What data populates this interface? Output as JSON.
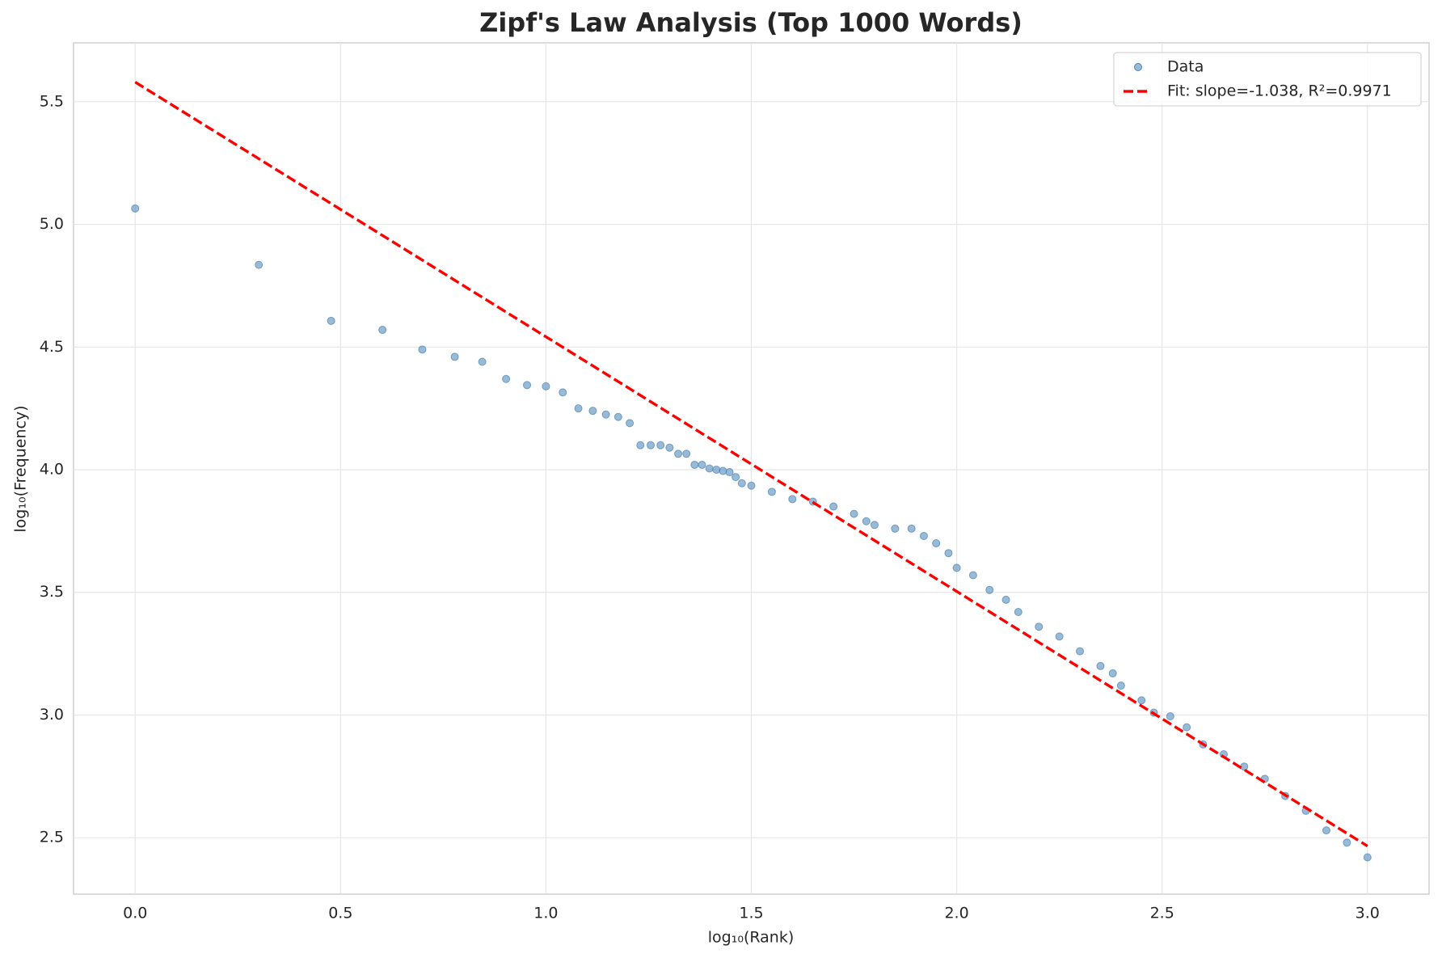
{
  "chart_data": {
    "type": "scatter",
    "title": "Zipf's Law Analysis (Top 1000 Words)",
    "xlabel": "log₁₀(Rank)",
    "ylabel": "log₁₀(Frequency)",
    "xlim": [
      -0.15,
      3.15
    ],
    "ylim": [
      2.27,
      5.74
    ],
    "xticks": [
      {
        "value": 0,
        "label": "0.0"
      },
      0.5,
      {
        "value": 1,
        "label": "1.0"
      },
      1.5,
      {
        "value": 2,
        "label": "2.0"
      },
      2.5,
      {
        "value": 3,
        "label": "3.0"
      }
    ],
    "yticks": [
      2.5,
      {
        "value": 3,
        "label": "3.0"
      },
      3.5,
      {
        "value": 4,
        "label": "4.0"
      },
      4.5,
      {
        "value": 5,
        "label": "5.0"
      },
      5.5
    ],
    "grid": true,
    "legend": "upper right",
    "series": [
      {
        "name": "Data",
        "type": "scatter",
        "color": "#4682b4",
        "x": [
          0,
          0.301,
          0.477,
          0.602,
          0.699,
          0.778,
          0.845,
          0.903,
          0.954,
          1.0,
          1.041,
          1.079,
          1.114,
          1.146,
          1.176,
          1.204,
          1.23,
          1.255,
          1.279,
          1.301,
          1.322,
          1.342,
          1.362,
          1.38,
          1.398,
          1.415,
          1.431,
          1.447,
          1.462,
          1.477,
          1.5,
          1.55,
          1.6,
          1.65,
          1.7,
          1.75,
          1.78,
          1.8,
          1.85,
          1.89,
          1.92,
          1.95,
          1.98,
          2.0,
          2.04,
          2.08,
          2.12,
          2.15,
          2.2,
          2.25,
          2.3,
          2.35,
          2.38,
          2.4,
          2.45,
          2.48,
          2.52,
          2.56,
          2.6,
          2.65,
          2.7,
          2.75,
          2.8,
          2.85,
          2.9,
          2.95,
          3.0
        ],
        "values": [
          5.065,
          4.835,
          4.607,
          4.57,
          4.49,
          4.46,
          4.44,
          4.37,
          4.345,
          4.34,
          4.315,
          4.25,
          4.24,
          4.225,
          4.215,
          4.19,
          4.1,
          4.1,
          4.1,
          4.09,
          4.065,
          4.065,
          4.02,
          4.02,
          4.005,
          4.0,
          3.995,
          3.99,
          3.97,
          3.945,
          3.935,
          3.91,
          3.88,
          3.87,
          3.85,
          3.82,
          3.79,
          3.775,
          3.76,
          3.76,
          3.73,
          3.7,
          3.66,
          3.6,
          3.57,
          3.51,
          3.47,
          3.42,
          3.36,
          3.32,
          3.26,
          3.2,
          3.17,
          3.12,
          3.06,
          3.01,
          2.995,
          2.95,
          2.88,
          2.84,
          2.79,
          2.74,
          2.67,
          2.61,
          2.53,
          2.48,
          2.42
        ]
      },
      {
        "name": "Fit: slope=-1.038, R²=0.9971",
        "type": "line",
        "color": "#ff0000",
        "linestyle": "dashed",
        "x": [
          0,
          3
        ],
        "values": [
          5.58,
          2.466
        ]
      }
    ]
  }
}
